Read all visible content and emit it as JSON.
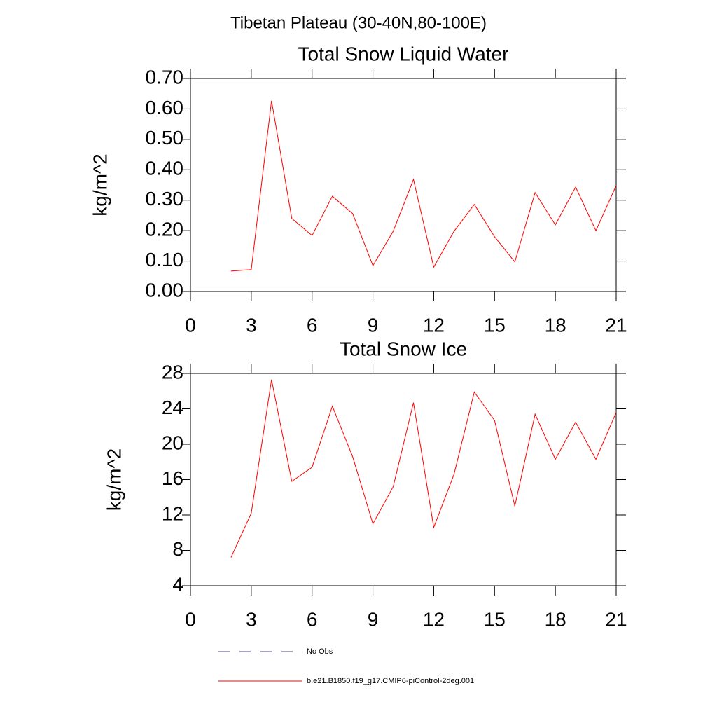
{
  "title": "Tibetan Plateau (30-40N,80-100E)",
  "chart_data": [
    {
      "type": "line",
      "title": "Total Snow Liquid Water",
      "y_label": "kg/m^2",
      "x": [
        2,
        3,
        4,
        5,
        6,
        7,
        8,
        9,
        10,
        11,
        12,
        13,
        14,
        15,
        16,
        17,
        18,
        19,
        20,
        21
      ],
      "series": [
        {
          "color": "#ff0000",
          "values": [
            0.067,
            0.072,
            0.627,
            0.24,
            0.184,
            0.313,
            0.256,
            0.085,
            0.198,
            0.368,
            0.08,
            0.198,
            0.286,
            0.18,
            0.097,
            0.325,
            0.219,
            0.343,
            0.2,
            0.348
          ]
        }
      ],
      "xlim": [
        0,
        21
      ],
      "xticks": [
        0,
        3,
        6,
        9,
        12,
        15,
        18,
        21
      ],
      "ylim": [
        0,
        0.7
      ],
      "yticks": [
        {
          "value": 0,
          "label": "0.00"
        },
        {
          "value": 0.1,
          "label": "0.10"
        },
        {
          "value": 0.2,
          "label": "0.20"
        },
        {
          "value": 0.3,
          "label": "0.30"
        },
        {
          "value": 0.4,
          "label": "0.40"
        },
        {
          "value": 0.5,
          "label": "0.50"
        },
        {
          "value": 0.6,
          "label": "0.60"
        },
        {
          "value": 0.7,
          "label": "0.70"
        }
      ]
    },
    {
      "type": "line",
      "title": "Total Snow Ice",
      "y_label": "kg/m^2",
      "x": [
        2,
        3,
        4,
        5,
        6,
        7,
        8,
        9,
        10,
        11,
        12,
        13,
        14,
        15,
        16,
        17,
        18,
        19,
        20,
        21
      ],
      "series": [
        {
          "color": "#ff0000",
          "values": [
            7.2,
            12.2,
            27.3,
            15.8,
            17.4,
            24.3,
            18.6,
            11.0,
            15.2,
            24.7,
            10.6,
            16.6,
            25.9,
            22.7,
            13.0,
            23.4,
            18.3,
            22.5,
            18.3,
            23.6
          ]
        }
      ],
      "xlim": [
        0,
        21
      ],
      "xticks": [
        0,
        3,
        6,
        9,
        12,
        15,
        18,
        21
      ],
      "ylim": [
        4,
        28
      ],
      "yticks": [
        4,
        8,
        12,
        16,
        20,
        24,
        28
      ]
    }
  ],
  "legend": [
    {
      "name": "No Obs",
      "color": "#4d4d8a",
      "style": "dashed"
    },
    {
      "name": "b.e21.B1850.f19_g17.CMIP6-piControl-2deg.001",
      "color": "#ff0000",
      "style": "solid"
    }
  ]
}
